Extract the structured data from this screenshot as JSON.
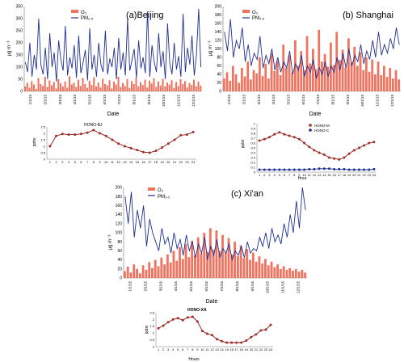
{
  "colors": {
    "o3": "#f0735f",
    "pm25": "#1f2f8f",
    "hono_line": "#7b1a1a",
    "hono_marker": "#a82a22",
    "honoc_line": "#1f2f8f"
  },
  "legend_labels": {
    "o3": "O₃",
    "pm25": "PM₂.₅"
  },
  "chart_data": [
    {
      "type": "line",
      "title": "(a)Beijing",
      "xlabel": "Date",
      "ylabel": "μg m⁻³",
      "ylim": [
        0,
        350
      ],
      "yticks": [
        "0",
        "50",
        "100",
        "150",
        "200",
        "250",
        "300",
        "350"
      ],
      "xticks": [
        "1/1/15",
        "2/1/15",
        "3/1/15",
        "4/1/15",
        "5/1/15",
        "6/1/15",
        "7/1/15",
        "8/1/15",
        "9/1/15",
        "10/1/15",
        "11/1/15",
        "12/1/15"
      ],
      "legend": "top-left",
      "series": [
        {
          "name": "O₃",
          "values": [
            20,
            35,
            15,
            42,
            28,
            10,
            55,
            30,
            22,
            60,
            18,
            45,
            25,
            38,
            12,
            50,
            33,
            20,
            40,
            15,
            62,
            28,
            35,
            18,
            48,
            22,
            55,
            30,
            14,
            44,
            26,
            58,
            20,
            36,
            16,
            52,
            30,
            24,
            46,
            12,
            40,
            28,
            60,
            18,
            34,
            22,
            50,
            14,
            42,
            30,
            56,
            20,
            38,
            26,
            48,
            16,
            44,
            32,
            54,
            18,
            40,
            24,
            52,
            20,
            36,
            28,
            46,
            14,
            38,
            22,
            50,
            30,
            42,
            16,
            34,
            26,
            48,
            20,
            40,
            24
          ],
          "style": "bars"
        },
        {
          "name": "PM₂.₅",
          "values": [
            120,
            80,
            200,
            60,
            150,
            90,
            300,
            110,
            70,
            180,
            50,
            240,
            100,
            160,
            40,
            210,
            130,
            85,
            270,
            65,
            140,
            95,
            190,
            55,
            230,
            75,
            120,
            170,
            45,
            260,
            90,
            150,
            60,
            200,
            110,
            80,
            250,
            70,
            135,
            100,
            180,
            50,
            220,
            90,
            160,
            65,
            300,
            85,
            130,
            175,
            55,
            210,
            95,
            140,
            75,
            330,
            60,
            190,
            120,
            80,
            240,
            100,
            165,
            50,
            280,
            115,
            70,
            200,
            90,
            145,
            60,
            320,
            80,
            180,
            110,
            230,
            65,
            150,
            340,
            100
          ]
        }
      ]
    },
    {
      "type": "line",
      "title": "(b) Shanghai",
      "xlabel": "Date",
      "ylabel": "μg m⁻³",
      "ylim": [
        0,
        200
      ],
      "yticks": [
        "0",
        "20",
        "40",
        "60",
        "80",
        "100",
        "120",
        "140",
        "160",
        "180",
        "200"
      ],
      "xticks": [
        "1/1/15",
        "2/1/15",
        "3/1/15",
        "4/1/15",
        "5/1/15",
        "6/1/15",
        "7/1/15",
        "8/1/15",
        "9/1/15",
        "10/1/15",
        "11/1/15",
        "12/1/15"
      ],
      "legend": "top-left",
      "series": [
        {
          "name": "O₃",
          "values": [
            30,
            45,
            25,
            60,
            40,
            20,
            55,
            35,
            70,
            28,
            50,
            42,
            80,
            36,
            65,
            30,
            90,
            48,
            72,
            38,
            110,
            55,
            85,
            44,
            120,
            60,
            95,
            50,
            130,
            66,
            100,
            52,
            145,
            70,
            88,
            58,
            115,
            62,
            140,
            74,
            98,
            56,
            125,
            68,
            105,
            60,
            92,
            50,
            80,
            46,
            75,
            40,
            70,
            38,
            60,
            34,
            55,
            30,
            50,
            28
          ],
          "style": "bars"
        },
        {
          "name": "PM₂.₅",
          "values": [
            140,
            95,
            170,
            80,
            120,
            100,
            150,
            70,
            110,
            60,
            90,
            75,
            130,
            55,
            85,
            65,
            100,
            50,
            80,
            45,
            70,
            55,
            95,
            40,
            65,
            50,
            85,
            35,
            60,
            45,
            75,
            30,
            55,
            40,
            70,
            35,
            60,
            45,
            80,
            50,
            90,
            55,
            100,
            60,
            85,
            70,
            110,
            65,
            95,
            75,
            120,
            80,
            140,
            85,
            110,
            90,
            125,
            100,
            150,
            110
          ]
        }
      ]
    },
    {
      "type": "line",
      "title": "(c) Xi'an",
      "xlabel": "Date",
      "ylabel": "μg m⁻³",
      "ylim": [
        0,
        200
      ],
      "yticks": [
        "0",
        "20",
        "40",
        "60",
        "80",
        "100",
        "120",
        "140",
        "160",
        "180",
        "200"
      ],
      "xticks": [
        "1/1/15",
        "2/1/15",
        "3/1/15",
        "4/1/15",
        "5/1/15",
        "6/1/15",
        "7/1/15",
        "8/1/15",
        "9/1/15",
        "10/1/15",
        "11/1/15",
        "12/1/15"
      ],
      "legend": "top-left",
      "series": [
        {
          "name": "O₃",
          "values": [
            15,
            25,
            12,
            30,
            20,
            10,
            28,
            18,
            35,
            22,
            40,
            26,
            45,
            30,
            52,
            34,
            60,
            38,
            68,
            42,
            75,
            46,
            82,
            50,
            90,
            55,
            100,
            58,
            110,
            62,
            105,
            60,
            95,
            56,
            88,
            52,
            80,
            48,
            72,
            44,
            64,
            40,
            56,
            36,
            48,
            32,
            42,
            28,
            36,
            24,
            30,
            20,
            26,
            18,
            22,
            16,
            20,
            14,
            18,
            12
          ],
          "style": "bars"
        },
        {
          "name": "PM₂.₅",
          "values": [
            180,
            120,
            190,
            90,
            150,
            110,
            160,
            70,
            130,
            100,
            80,
            60,
            110,
            75,
            90,
            55,
            100,
            65,
            85,
            50,
            95,
            60,
            80,
            45,
            75,
            55,
            90,
            40,
            70,
            50,
            85,
            45,
            65,
            55,
            75,
            40,
            60,
            50,
            70,
            45,
            80,
            55,
            65,
            60,
            90,
            70,
            100,
            65,
            110,
            80,
            95,
            75,
            120,
            90,
            140,
            100,
            170,
            110,
            200,
            150
          ]
        }
      ]
    },
    {
      "type": "line",
      "title": "HONO-BJ",
      "xlabel": "",
      "ylabel": "ppbv",
      "ylim": [
        0,
        2.5
      ],
      "yticks": [
        "0",
        "0.5",
        "1",
        "1.5",
        "2",
        "2.5"
      ],
      "x": [
        1,
        2,
        3,
        4,
        5,
        6,
        7,
        8,
        9,
        10,
        11,
        12,
        13,
        14,
        15,
        16,
        17,
        18,
        19,
        20,
        21,
        22,
        23,
        24
      ],
      "series": [
        {
          "name": "HONO-BJ",
          "values": [
            1.0,
            1.8,
            1.95,
            1.9,
            1.9,
            1.95,
            2.05,
            2.25,
            2.0,
            1.8,
            1.5,
            1.2,
            1.0,
            0.85,
            0.7,
            0.55,
            0.5,
            0.65,
            0.9,
            1.2,
            1.5,
            1.85,
            1.9,
            2.1
          ]
        }
      ]
    },
    {
      "type": "line",
      "title": "",
      "xlabel": "Hour",
      "ylabel": "ppbv",
      "ylim": [
        0,
        1
      ],
      "yticks": [
        "0",
        "0.1",
        "0.2",
        "0.3",
        "0.4",
        "0.5",
        "0.6",
        "0.7",
        "0.8",
        "0.9",
        "1"
      ],
      "x": [
        1,
        2,
        3,
        4,
        5,
        6,
        7,
        8,
        9,
        10,
        11,
        12,
        13,
        14,
        15,
        16,
        17,
        18,
        19,
        20,
        21,
        22,
        23,
        24
      ],
      "legend": "top-right",
      "series": [
        {
          "name": "HONO-M",
          "values": [
            0.65,
            0.68,
            0.72,
            0.78,
            0.82,
            0.78,
            0.75,
            0.72,
            0.68,
            0.6,
            0.52,
            0.45,
            0.4,
            0.36,
            0.3,
            0.28,
            0.26,
            0.3,
            0.38,
            0.45,
            0.5,
            0.55,
            0.6,
            0.62
          ]
        },
        {
          "name": "HONO-C",
          "values": [
            0.05,
            0.05,
            0.05,
            0.05,
            0.05,
            0.05,
            0.05,
            0.05,
            0.05,
            0.05,
            0.06,
            0.06,
            0.07,
            0.07,
            0.07,
            0.06,
            0.06,
            0.06,
            0.05,
            0.05,
            0.05,
            0.05,
            0.05,
            0.06
          ]
        }
      ]
    },
    {
      "type": "line",
      "title": "HONO-XA",
      "xlabel": "Hours",
      "ylabel": "ppbv",
      "ylim": [
        0,
        2.5
      ],
      "yticks": [
        "0",
        "0.5",
        "1",
        "1.5",
        "2",
        "2.5"
      ],
      "x": [
        1,
        2,
        3,
        4,
        5,
        6,
        7,
        8,
        9,
        10,
        11,
        12,
        13,
        14,
        15,
        16,
        17,
        18,
        19,
        20,
        21,
        22,
        23,
        24
      ],
      "series": [
        {
          "name": "HONO-XA",
          "values": [
            1.35,
            1.55,
            1.8,
            2.0,
            2.1,
            1.95,
            2.15,
            2.2,
            1.85,
            1.15,
            0.95,
            0.85,
            0.55,
            0.4,
            0.3,
            0.3,
            0.3,
            0.3,
            0.45,
            0.7,
            0.9,
            1.2,
            1.25,
            1.6
          ]
        }
      ]
    }
  ]
}
